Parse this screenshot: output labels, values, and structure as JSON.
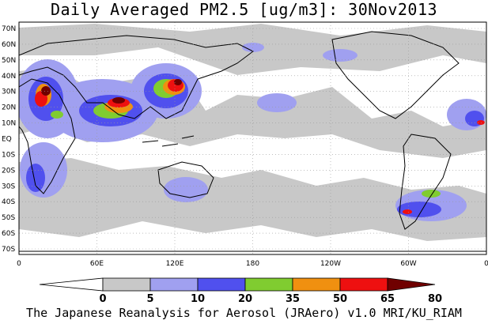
{
  "title": "Daily Averaged PM2.5 [ug/m3]: 30Nov2013",
  "footer": "The Japanese Reanalysis for Aerosol (JRAero) v1.0 MRI/KU_RIAM",
  "map": {
    "projection": "cylindrical, centered 180",
    "lon_labels": [
      "0",
      "60E",
      "120E",
      "180",
      "120W",
      "60W",
      "0"
    ],
    "lat_labels": [
      "70N",
      "60N",
      "50N",
      "40N",
      "30N",
      "20N",
      "10N",
      "EQ",
      "10S",
      "20S",
      "30S",
      "40S",
      "50S",
      "60S",
      "70S"
    ],
    "grid": "dotted"
  },
  "colorbar": {
    "labels": [
      "0",
      "5",
      "10",
      "20",
      "35",
      "50",
      "65",
      "80"
    ],
    "colors": [
      "#ffffff",
      "#c8c8c8",
      "#a0a0f0",
      "#5050ee",
      "#80cc30",
      "#f09010",
      "#ee1010",
      "#700000"
    ]
  }
}
